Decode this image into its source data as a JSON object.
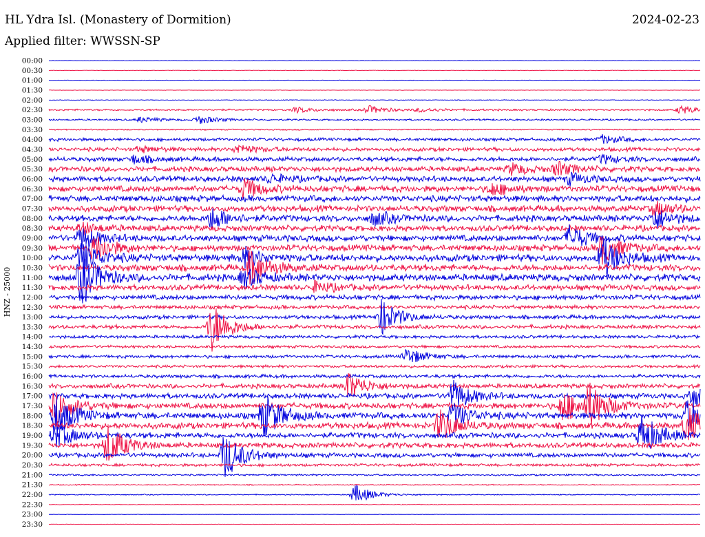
{
  "header": {
    "station": "HL Ydra Isl. (Monastery of Dormition)",
    "date": "2024-02-23",
    "filter": "Applied filter: WWSSN-SP"
  },
  "colors": {
    "trace_a": "#0000dd",
    "trace_b": "#ee1144",
    "text": "#000000"
  },
  "chart_data": {
    "type": "line",
    "title": "HL Ydra Isl. (Monastery of Dormition)",
    "ylabel": "HNZ - 25000",
    "row_labels": [
      "00:00",
      "00:30",
      "01:00",
      "01:30",
      "02:00",
      "02:30",
      "03:00",
      "03:30",
      "04:00",
      "04:30",
      "05:00",
      "05:30",
      "06:00",
      "06:30",
      "07:00",
      "07:30",
      "08:00",
      "08:30",
      "09:00",
      "09:30",
      "10:00",
      "10:30",
      "11:00",
      "11:30",
      "12:00",
      "12:30",
      "13:00",
      "13:30",
      "14:00",
      "14:30",
      "15:00",
      "15:30",
      "16:00",
      "16:30",
      "17:00",
      "17:30",
      "18:00",
      "18:30",
      "19:00",
      "19:30",
      "20:00",
      "20:30",
      "21:00",
      "21:30",
      "22:00",
      "22:30",
      "23:00",
      "23:30"
    ],
    "row_colors": [
      "blue",
      "red",
      "blue",
      "red",
      "blue",
      "red",
      "blue",
      "red",
      "blue",
      "red",
      "blue",
      "red",
      "blue",
      "red",
      "blue",
      "red",
      "blue",
      "red",
      "blue",
      "red",
      "blue",
      "red",
      "blue",
      "red",
      "blue",
      "red",
      "blue",
      "red",
      "blue",
      "red",
      "blue",
      "red",
      "blue",
      "red",
      "blue",
      "red",
      "blue",
      "red",
      "blue",
      "red",
      "blue",
      "red",
      "blue",
      "red",
      "blue",
      "red",
      "blue",
      "red"
    ],
    "noise_level": [
      0.2,
      0.3,
      0.3,
      0.2,
      0.4,
      1.0,
      1.0,
      0.7,
      1.8,
      2.2,
      2.6,
      3.0,
      3.2,
      3.6,
      3.6,
      3.6,
      3.6,
      3.4,
      3.6,
      3.6,
      4.0,
      3.8,
      4.0,
      3.2,
      2.8,
      2.2,
      2.2,
      2.2,
      1.8,
      1.6,
      1.8,
      1.6,
      2.0,
      2.6,
      3.0,
      3.4,
      3.6,
      3.6,
      3.2,
      3.0,
      2.6,
      1.6,
      1.0,
      0.6,
      0.6,
      0.4,
      0.2,
      0.2
    ],
    "events": [
      {
        "row": 5,
        "t": 0.38,
        "amp": 4
      },
      {
        "row": 5,
        "t": 0.49,
        "amp": 6
      },
      {
        "row": 5,
        "t": 0.57,
        "amp": 3
      },
      {
        "row": 5,
        "t": 0.97,
        "amp": 6
      },
      {
        "row": 6,
        "t": 0.14,
        "amp": 4
      },
      {
        "row": 6,
        "t": 0.23,
        "amp": 6
      },
      {
        "row": 8,
        "t": 0.85,
        "amp": 6
      },
      {
        "row": 9,
        "t": 0.29,
        "amp": 7
      },
      {
        "row": 9,
        "t": 0.14,
        "amp": 4
      },
      {
        "row": 10,
        "t": 0.13,
        "amp": 6
      },
      {
        "row": 10,
        "t": 0.85,
        "amp": 6
      },
      {
        "row": 11,
        "t": 0.71,
        "amp": 8
      },
      {
        "row": 11,
        "t": 0.78,
        "amp": 10
      },
      {
        "row": 12,
        "t": 0.34,
        "amp": 6
      },
      {
        "row": 12,
        "t": 0.8,
        "amp": 8
      },
      {
        "row": 13,
        "t": 0.3,
        "amp": 14
      },
      {
        "row": 13,
        "t": 0.68,
        "amp": 9
      },
      {
        "row": 15,
        "t": 0.93,
        "amp": 10
      },
      {
        "row": 16,
        "t": 0.25,
        "amp": 16
      },
      {
        "row": 16,
        "t": 0.5,
        "amp": 10
      },
      {
        "row": 16,
        "t": 0.93,
        "amp": 14
      },
      {
        "row": 17,
        "t": 0.05,
        "amp": 8
      },
      {
        "row": 18,
        "t": 0.05,
        "amp": 16
      },
      {
        "row": 18,
        "t": 0.8,
        "amp": 18
      },
      {
        "row": 19,
        "t": 0.07,
        "amp": 20
      },
      {
        "row": 19,
        "t": 0.85,
        "amp": 22
      },
      {
        "row": 20,
        "t": 0.05,
        "amp": 24
      },
      {
        "row": 20,
        "t": 0.3,
        "amp": 14
      },
      {
        "row": 20,
        "t": 0.85,
        "amp": 30
      },
      {
        "row": 21,
        "t": 0.31,
        "amp": 26
      },
      {
        "row": 22,
        "t": 0.05,
        "amp": 40
      },
      {
        "row": 22,
        "t": 0.3,
        "amp": 14
      },
      {
        "row": 23,
        "t": 0.41,
        "amp": 8
      },
      {
        "row": 26,
        "t": 0.51,
        "amp": 26
      },
      {
        "row": 27,
        "t": 0.25,
        "amp": 36
      },
      {
        "row": 30,
        "t": 0.55,
        "amp": 12
      },
      {
        "row": 33,
        "t": 0.46,
        "amp": 20
      },
      {
        "row": 34,
        "t": 0.62,
        "amp": 22
      },
      {
        "row": 34,
        "t": 0.99,
        "amp": 14
      },
      {
        "row": 35,
        "t": 0.01,
        "amp": 26
      },
      {
        "row": 35,
        "t": 0.79,
        "amp": 24
      },
      {
        "row": 35,
        "t": 0.83,
        "amp": 28
      },
      {
        "row": 36,
        "t": 0.01,
        "amp": 30
      },
      {
        "row": 36,
        "t": 0.33,
        "amp": 32
      },
      {
        "row": 36,
        "t": 0.62,
        "amp": 18
      },
      {
        "row": 36,
        "t": 0.98,
        "amp": 22
      },
      {
        "row": 37,
        "t": 0.6,
        "amp": 24
      },
      {
        "row": 37,
        "t": 0.98,
        "amp": 26
      },
      {
        "row": 38,
        "t": 0.01,
        "amp": 18
      },
      {
        "row": 38,
        "t": 0.91,
        "amp": 30
      },
      {
        "row": 39,
        "t": 0.09,
        "amp": 30
      },
      {
        "row": 40,
        "t": 0.27,
        "amp": 34
      },
      {
        "row": 44,
        "t": 0.47,
        "amp": 14
      }
    ]
  }
}
